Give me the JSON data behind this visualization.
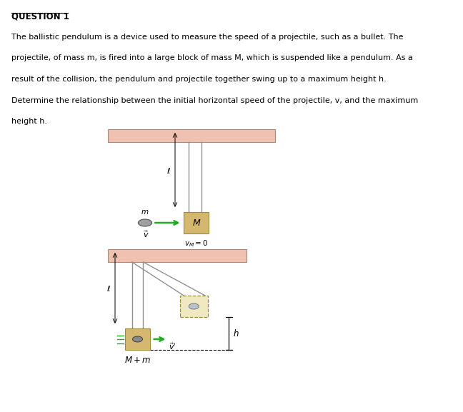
{
  "title_text": "QUESTION 1",
  "lines": [
    "The ballistic pendulum is a device used to measure the speed of a projectile, such as a bullet. The",
    "projectile, of mass m, is fired into a large block of mass M, which is suspended like a pendulum. As a",
    "result of the collision, the pendulum and projectile together swing up to a maximum height h.",
    "Determine the relationship between the initial horizontal speed of the projectile, v, and the maximum",
    "height h."
  ],
  "ceiling_color": "#f0c0b0",
  "ceiling_edge_color": "#b08878",
  "block_color": "#d4b870",
  "block_edge_color": "#a08840",
  "bg_color": "#ffffff",
  "string_color": "#909090",
  "green_color": "#22aa22",
  "dashed_color": "#888888"
}
